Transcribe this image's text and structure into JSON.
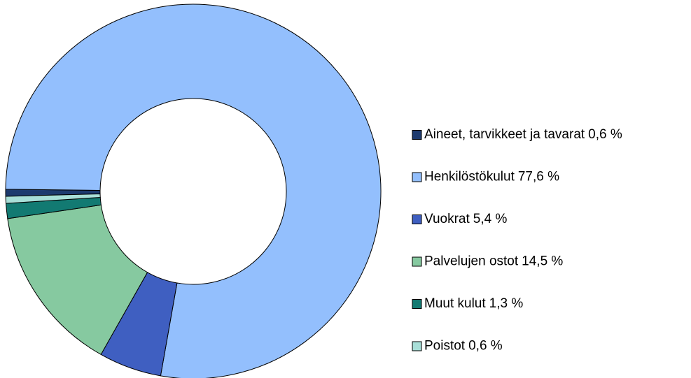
{
  "chart_data": {
    "type": "donut",
    "categories": [
      "Aineet, tarvikkeet ja tavarat",
      "Henkilöstökulut",
      "Vuokrat",
      "Palvelujen ostot",
      "Muut kulut",
      "Poistot"
    ],
    "values": [
      0.6,
      77.6,
      5.4,
      14.5,
      1.3,
      0.6
    ],
    "value_labels": [
      "0,6 %",
      "77,6 %",
      "5,4 %",
      "14,5 %",
      "1,3 %",
      "0,6 %"
    ],
    "colors": [
      "#1d3a6e",
      "#93bffd",
      "#3f5fc1",
      "#86c9a0",
      "#127a72",
      "#a8dfd8"
    ],
    "legend": "right"
  }
}
